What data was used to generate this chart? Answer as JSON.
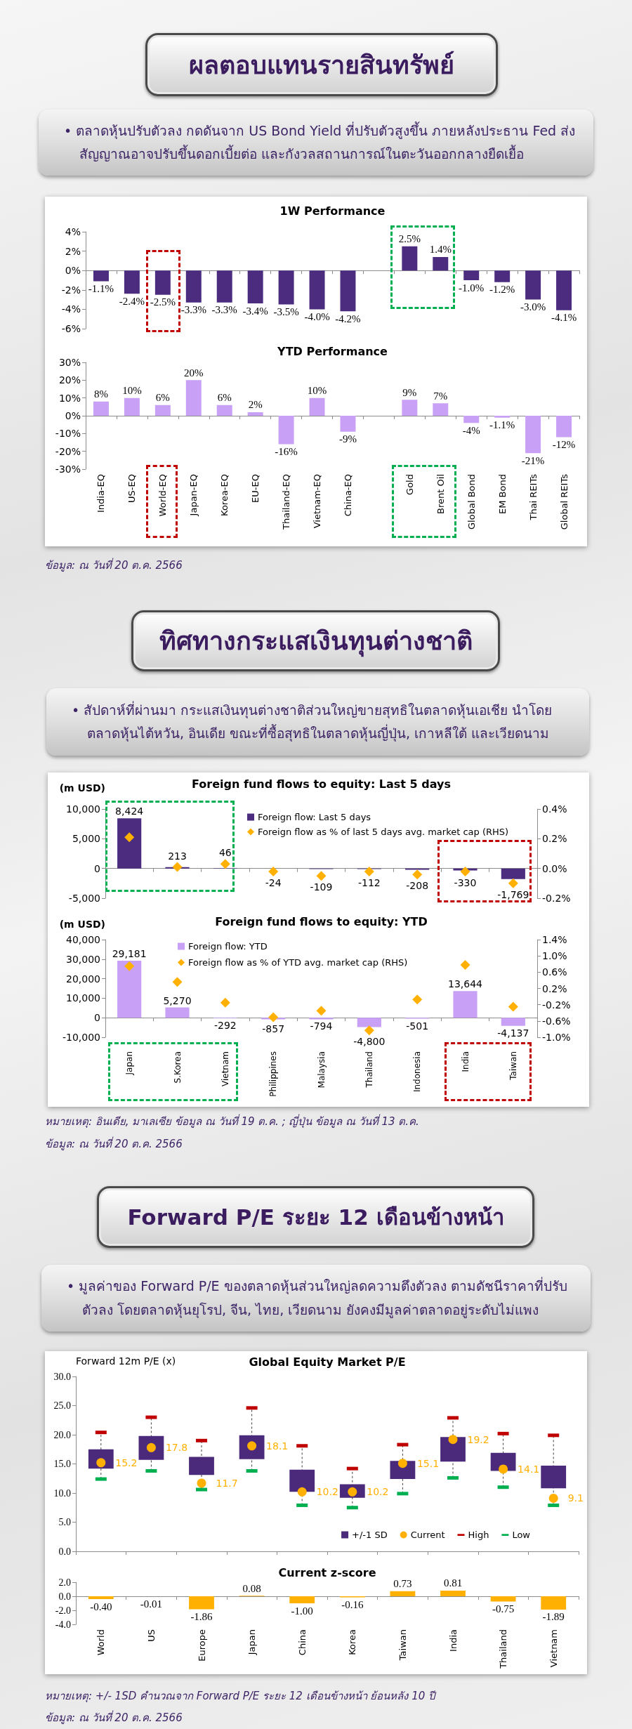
{
  "chart_data": [
    {
      "type": "other",
      "title": "ผลตอบแทนรายสินทรัพย์",
      "annotations": [
        "• ตลาดหุ้นปรับตัวลง กดดันจาก US Bond Yield ที่ปรับตัวสูงขึ้น ภายหลังประธาน Fed ส่งสัญญาณอาจปรับขึ้นดอกเบี้ยต่อ และกังวลสถานการณ์ในตะวันออกกลางยืดเยื้อ"
      ]
    },
    {
      "type": "bar",
      "title": "1W Performance",
      "categories": [
        null,
        null,
        null,
        null,
        null,
        null,
        null,
        null,
        null,
        null,
        null,
        null,
        null,
        null,
        null,
        null
      ],
      "values": [
        -1.1,
        -2.4,
        -2.5,
        -3.3,
        -3.3,
        -3.4,
        -3.5,
        -4.0,
        -4.2,
        null,
        2.5,
        1.4,
        -1.0,
        -1.2,
        -3.0,
        -4.1
      ],
      "value_labels": [
        "-1.1%",
        "-2.4%",
        "-2.5%",
        "-3.3%",
        "-3.3%",
        "-3.4%",
        "-3.5%",
        "-4.0%",
        "-4.2%",
        null,
        "2.5%",
        "1.4%",
        "-1.0%",
        "-1.2%",
        "-3.0%",
        "-4.1%"
      ],
      "color": "#4b2c7f",
      "ylim": [
        -6,
        4
      ],
      "yticks": [
        {
          "value": -6,
          "label": "-6%"
        },
        {
          "value": -4,
          "label": "-4%"
        },
        {
          "value": -2,
          "label": "-2%"
        },
        {
          "value": 0,
          "label": "0%"
        },
        {
          "value": 2,
          "label": "2%"
        },
        {
          "value": 4,
          "label": "4%"
        }
      ],
      "tick_labels": "y"
    },
    {
      "type": "bar",
      "title": "YTD Performance",
      "categories": [
        "India-EQ",
        "US-EQ",
        "World-EQ",
        "Japan-EQ",
        "Korea-EQ",
        "EU-EQ",
        "Thailand-EQ",
        "Vietnam-EQ",
        "China-EQ",
        null,
        "Gold",
        "Brent Oil",
        "Global Bond",
        "EM Bond",
        "Thai REITs",
        "Global REITs"
      ],
      "values": [
        8,
        10,
        6,
        20,
        6,
        2,
        -16,
        10,
        -9,
        null,
        9,
        7,
        -4,
        -1.1,
        -21,
        -12
      ],
      "value_labels": [
        "8%",
        "10%",
        "6%",
        "20%",
        "6%",
        "2%",
        "-16%",
        "10%",
        "-9%",
        null,
        "9%",
        "7%",
        "-4%",
        "-1.1%",
        "-21%",
        "-12%"
      ],
      "color": "#c8a0f5",
      "ylim": [
        -30,
        30
      ],
      "yticks": [
        {
          "value": -30,
          "label": "-30%"
        },
        {
          "value": -20,
          "label": "-20%"
        },
        {
          "value": -10,
          "label": "-10%"
        },
        {
          "value": 0,
          "label": "0%"
        },
        {
          "value": 10,
          "label": "10%"
        },
        {
          "value": 20,
          "label": "20%"
        },
        {
          "value": 30,
          "label": "30%"
        }
      ],
      "annotations": [
        "ข้อมูล: ณ วันที่ 20 ต.ค. 2566"
      ]
    },
    {
      "type": "other",
      "title": "ทิศทางกระแสเงินทุนต่างชาติ",
      "annotations": [
        "• สัปดาห์ที่ผ่านมา กระแสเงินทุนต่างชาติส่วนใหญ่ขายสุทธิในตลาดหุ้นเอเชีย นำโดยตลาดหุ้นไต้หวัน, อินเดีย ขณะที่ซื้อสุทธิในตลาดหุ้นญี่ปุ่น, เกาหลีใต้ และเวียดนาม"
      ]
    },
    {
      "type": "bar",
      "title": "Foreign fund flows to equity: Last 5 days",
      "ylabel": "(m USD)",
      "categories": [
        null,
        null,
        null,
        null,
        null,
        null,
        null,
        null,
        null
      ],
      "series": [
        {
          "name": "Foreign flow: Last 5 days",
          "color": "#4b2c7f",
          "values": [
            8424,
            213,
            46,
            -24,
            -109,
            -112,
            -208,
            -330,
            -1769
          ],
          "value_labels": [
            "8,424",
            "213",
            "46",
            "-24",
            "-109",
            "-112",
            "-208",
            "-330",
            "-1,769"
          ]
        },
        {
          "name": "Foreign flow as % of last 5 days avg. market cap (RHS)",
          "type": "scatter",
          "marker": "diamond",
          "axis": "y2",
          "color": "#ffb000",
          "values": [
            0.21,
            0.01,
            0.03,
            -0.02,
            -0.05,
            -0.02,
            -0.04,
            -0.02,
            -0.1
          ]
        }
      ],
      "ylim": [
        -5000,
        10000
      ],
      "yticks": [
        {
          "value": -5000,
          "label": "-5,000"
        },
        {
          "value": 0,
          "label": "0"
        },
        {
          "value": 5000,
          "label": "5,000"
        },
        {
          "value": 10000,
          "label": "10,000"
        }
      ],
      "y2lim": [
        -0.2,
        0.4
      ],
      "y2ticks": [
        {
          "value": -0.2,
          "label": "-0.2%"
        },
        {
          "value": 0,
          "label": "0.0%"
        },
        {
          "value": 0.2,
          "label": "0.2%"
        },
        {
          "value": 0.4,
          "label": "0.4%"
        }
      ],
      "legend": "top",
      "tick_labels": "y"
    },
    {
      "type": "bar",
      "title": "Foreign fund flows to equity: YTD",
      "ylabel": "(m USD)",
      "categories": [
        "Japan",
        "S.Korea",
        "Vietnam",
        "Philippines",
        "Malaysia",
        "Thailand",
        "Indonesia",
        "India",
        "Taiwan"
      ],
      "series": [
        {
          "name": "Foreign flow: YTD",
          "color": "#c8a0f5",
          "values": [
            29181,
            5270,
            -292,
            -857,
            -794,
            -4800,
            -501,
            13644,
            -4137
          ],
          "value_labels": [
            "29,181",
            "5,270",
            "-292",
            "-857",
            "-794",
            "-4,800",
            "-501",
            "13,644",
            "-4,137"
          ]
        },
        {
          "name": "Foreign flow as % of YTD avg. market cap (RHS)",
          "type": "scatter",
          "marker": "diamond",
          "axis": "y2",
          "color": "#ffb000",
          "values": [
            0.75,
            0.36,
            -0.15,
            -0.51,
            -0.35,
            -0.83,
            -0.07,
            0.78,
            -0.25
          ]
        }
      ],
      "ylim": [
        -10000,
        40000
      ],
      "yticks": [
        {
          "value": -10000,
          "label": "-10,000"
        },
        {
          "value": 0,
          "label": "0"
        },
        {
          "value": 10000,
          "label": "10,000"
        },
        {
          "value": 20000,
          "label": "20,000"
        },
        {
          "value": 30000,
          "label": "30,000"
        },
        {
          "value": 40000,
          "label": "40,000"
        }
      ],
      "y2lim": [
        -1.0,
        1.4
      ],
      "y2ticks": [
        {
          "value": -1.0,
          "label": "-1.0%"
        },
        {
          "value": -0.6,
          "label": "-0.6%"
        },
        {
          "value": -0.2,
          "label": "-0.2%"
        },
        {
          "value": 0.2,
          "label": "0.2%"
        },
        {
          "value": 0.6,
          "label": "0.6%"
        },
        {
          "value": 1.0,
          "label": "1.0%"
        },
        {
          "value": 1.4,
          "label": "1.4%"
        }
      ],
      "legend": "top",
      "annotations": [
        "หมายเหตุ: อินเดีย, มาเลเซีย ข้อมูล ณ วันที่ 19 ต.ค. ; ญี่ปุ่น ข้อมูล ณ วันที่ 13 ต.ค.",
        "ข้อมูล: ณ วันที่ 20 ต.ค. 2566"
      ]
    },
    {
      "type": "other",
      "title": "Forward P/E ระยะ 12 เดือนข้างหน้า",
      "annotations": [
        "• มูลค่าของ Forward P/E ของตลาดหุ้นส่วนใหญ่ลดความตึงตัวลง ตามดัชนีราคาที่ปรับตัวลง โดยตลาดหุ้นยุโรป, จีน, ไทย, เวียดนาม ยังคงมีมูลค่าตลาดอยู่ระดับไม่แพง"
      ]
    },
    {
      "type": "bar",
      "title": "Global Equity Market P/E",
      "ylabel": "Forward 12m P/E (x)",
      "categories": [
        null,
        null,
        null,
        null,
        null,
        null,
        null,
        null,
        null,
        null
      ],
      "series": [
        {
          "name": "+/-1 SD",
          "color": "#4b2a7b",
          "base": [
            14.2,
            15.7,
            13.1,
            15.8,
            10.2,
            9.2,
            12.4,
            15.4,
            13.8,
            10.8
          ],
          "values": [
            3.3,
            4.1,
            3.1,
            4.1,
            3.8,
            2.3,
            3.1,
            4.2,
            3.1,
            3.9
          ]
        },
        {
          "name": "Current",
          "type": "scatter",
          "marker": "circle",
          "color": "#ffb000",
          "values": [
            15.2,
            17.8,
            11.7,
            18.1,
            10.2,
            10.2,
            15.1,
            19.2,
            14.1,
            9.1
          ],
          "value_labels": [
            "15.2",
            "17.8",
            "11.7",
            "18.1",
            "10.2",
            "10.2",
            "15.1",
            "19.2",
            "14.1",
            "9.1"
          ]
        },
        {
          "name": "High",
          "type": "scatter",
          "color": "#c00000",
          "values": [
            20.4,
            23.0,
            19.0,
            24.6,
            18.1,
            14.2,
            18.3,
            22.9,
            20.2,
            19.9
          ]
        },
        {
          "name": "Low",
          "type": "scatter",
          "color": "#00b050",
          "values": [
            12.4,
            13.8,
            10.6,
            13.8,
            7.9,
            7.5,
            9.9,
            12.6,
            11.0,
            7.9
          ]
        }
      ],
      "ylim": [
        0,
        30
      ],
      "yticks": [
        {
          "value": 0,
          "label": "0.0"
        },
        {
          "value": 5,
          "label": "5.0"
        },
        {
          "value": 10,
          "label": "10.0"
        },
        {
          "value": 15,
          "label": "15.0"
        },
        {
          "value": 20,
          "label": "20.0"
        },
        {
          "value": 25,
          "label": "25.0"
        },
        {
          "value": 30,
          "label": "30.0"
        }
      ],
      "legend": "bottom right",
      "tick_labels": "y"
    },
    {
      "type": "bar",
      "title": "Current z-score",
      "categories": [
        "World",
        "US",
        "Europe",
        "Japan",
        "China",
        "Korea",
        "Taiwan",
        "India",
        "Thailand",
        "Vietnam"
      ],
      "values": [
        -0.4,
        -0.01,
        -1.86,
        0.08,
        -1.0,
        -0.16,
        0.73,
        0.81,
        -0.75,
        -1.89
      ],
      "value_labels": [
        "-0.40",
        "-0.01",
        "-1.86",
        "0.08",
        "-1.00",
        "-0.16",
        "0.73",
        "0.81",
        "-0.75",
        "-1.89"
      ],
      "color": "#ffb000",
      "ylim": [
        -4,
        2
      ],
      "yticks": [
        {
          "value": -4,
          "label": "-4.0"
        },
        {
          "value": -2,
          "label": "-2.0"
        },
        {
          "value": 0,
          "label": "0.0"
        },
        {
          "value": 2,
          "label": "2.0"
        }
      ],
      "annotations": [
        "หมายเหตุ: +/- 1SD คำนวณจาก Forward P/E ระยะ 12 เดือนข้างหน้า ย้อนหลัง 10 ปี",
        "ข้อมูล: ณ วันที่ 20 ต.ค. 2566"
      ]
    }
  ]
}
